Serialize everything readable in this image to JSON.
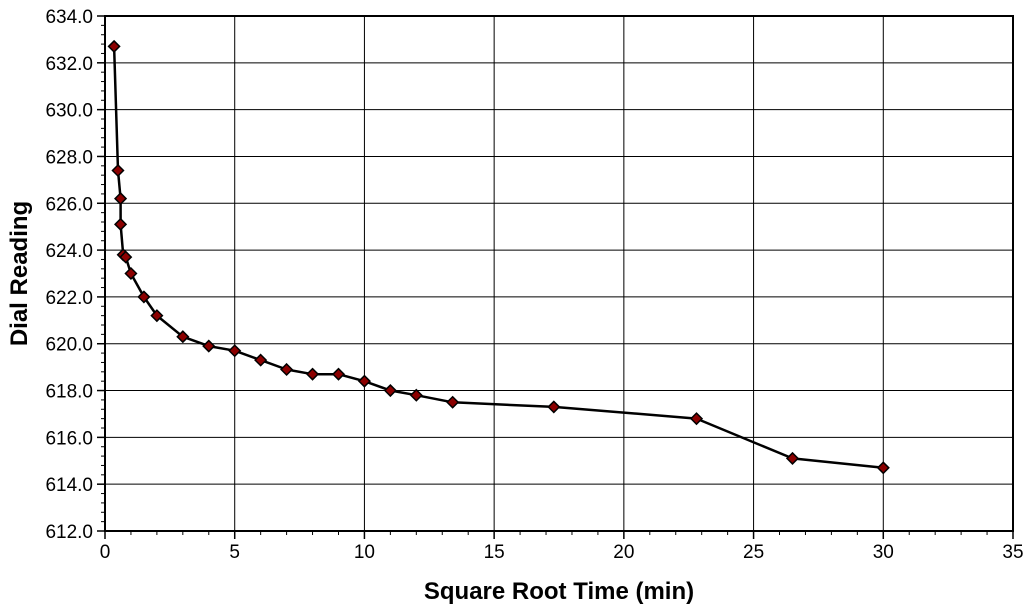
{
  "chart_data": {
    "type": "scatter",
    "title": "",
    "xlabel": "Square Root Time (min)",
    "ylabel": "Dial Reading",
    "xlim": [
      0,
      35
    ],
    "ylim": [
      612.0,
      634.0
    ],
    "x_ticks": [
      "0",
      "5",
      "10",
      "15",
      "20",
      "25",
      "30",
      "35"
    ],
    "y_ticks": [
      "612.0",
      "614.0",
      "616.0",
      "618.0",
      "620.0",
      "622.0",
      "624.0",
      "626.0",
      "628.0",
      "630.0",
      "632.0",
      "634.0"
    ],
    "grid": true,
    "line": true,
    "marker": "diamond",
    "marker_color": "#8b0000",
    "line_color": "#000000",
    "series": [
      {
        "x": [
          0.35,
          0.5,
          0.6,
          0.6,
          0.7,
          0.8,
          1.0,
          1.5,
          2.0,
          3.0,
          4.0,
          5.0,
          6.0,
          7.0,
          8.0,
          9.0,
          10.0,
          11.0,
          12.0,
          13.4,
          17.3,
          22.8,
          26.5,
          30.0
        ],
        "y": [
          632.7,
          627.4,
          626.2,
          625.1,
          623.8,
          623.7,
          623.0,
          622.0,
          621.2,
          620.3,
          619.9,
          619.7,
          619.3,
          618.9,
          618.7,
          618.7,
          618.4,
          618.0,
          617.8,
          617.5,
          617.3,
          616.8,
          615.1,
          614.7
        ]
      }
    ]
  }
}
